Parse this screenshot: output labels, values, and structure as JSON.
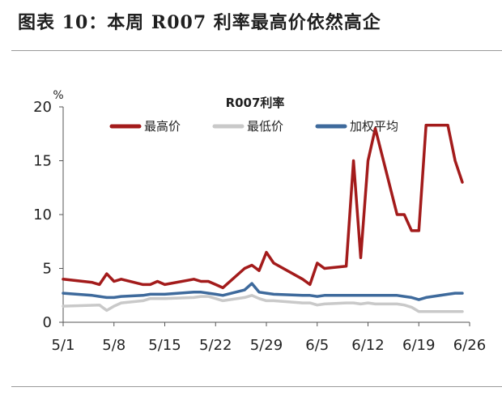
{
  "figure_title": "图表 10：本周 R007 利率最高价依然高企",
  "chart_data": {
    "type": "line",
    "title": "R007利率",
    "y_unit": "%",
    "ylim": [
      0,
      20
    ],
    "y_ticks": [
      0,
      5,
      10,
      15,
      20
    ],
    "x_tick_labels": [
      "5/1",
      "5/8",
      "5/15",
      "5/22",
      "5/29",
      "6/5",
      "6/12",
      "6/19",
      "6/26"
    ],
    "x_range": [
      "5/1",
      "6/26"
    ],
    "legend_placement": "top-center",
    "grid": false,
    "series": [
      {
        "name": "最高价",
        "color": "#a31b1b",
        "points": [
          [
            "5/1",
            4.0
          ],
          [
            "5/5",
            3.7
          ],
          [
            "5/6",
            3.5
          ],
          [
            "5/7",
            4.5
          ],
          [
            "5/8",
            3.8
          ],
          [
            "5/9",
            4.0
          ],
          [
            "5/12",
            3.5
          ],
          [
            "5/13",
            3.5
          ],
          [
            "5/14",
            3.8
          ],
          [
            "5/15",
            3.5
          ],
          [
            "5/19",
            4.0
          ],
          [
            "5/20",
            3.8
          ],
          [
            "5/21",
            3.8
          ],
          [
            "5/22",
            3.5
          ],
          [
            "5/23",
            3.2
          ],
          [
            "5/26",
            5.0
          ],
          [
            "5/27",
            5.3
          ],
          [
            "5/28",
            4.8
          ],
          [
            "5/29",
            6.5
          ],
          [
            "5/30",
            5.5
          ],
          [
            "6/3",
            4.0
          ],
          [
            "6/4",
            3.5
          ],
          [
            "6/5",
            5.5
          ],
          [
            "6/6",
            5.0
          ],
          [
            "6/9",
            5.2
          ],
          [
            "6/10",
            15.0
          ],
          [
            "6/11",
            6.0
          ],
          [
            "6/12",
            15.0
          ],
          [
            "6/13",
            18.0
          ],
          [
            "6/16",
            10.0
          ],
          [
            "6/17",
            10.0
          ],
          [
            "6/18",
            8.5
          ],
          [
            "6/19",
            8.5
          ],
          [
            "6/20",
            18.3
          ],
          [
            "6/23",
            18.3
          ],
          [
            "6/24",
            15.0
          ],
          [
            "6/25",
            13.0
          ]
        ]
      },
      {
        "name": "最低价",
        "color": "#c9c9c9",
        "points": [
          [
            "5/1",
            1.5
          ],
          [
            "5/6",
            1.6
          ],
          [
            "5/7",
            1.1
          ],
          [
            "5/8",
            1.5
          ],
          [
            "5/9",
            1.8
          ],
          [
            "5/12",
            2.0
          ],
          [
            "5/13",
            2.2
          ],
          [
            "5/14",
            2.2
          ],
          [
            "5/15",
            2.2
          ],
          [
            "5/19",
            2.3
          ],
          [
            "5/20",
            2.4
          ],
          [
            "5/21",
            2.4
          ],
          [
            "5/22",
            2.2
          ],
          [
            "5/23",
            2.0
          ],
          [
            "5/26",
            2.3
          ],
          [
            "5/27",
            2.5
          ],
          [
            "5/28",
            2.2
          ],
          [
            "5/29",
            2.0
          ],
          [
            "5/30",
            2.0
          ],
          [
            "6/3",
            1.8
          ],
          [
            "6/4",
            1.8
          ],
          [
            "6/5",
            1.6
          ],
          [
            "6/6",
            1.7
          ],
          [
            "6/9",
            1.8
          ],
          [
            "6/10",
            1.8
          ],
          [
            "6/11",
            1.7
          ],
          [
            "6/12",
            1.8
          ],
          [
            "6/13",
            1.7
          ],
          [
            "6/16",
            1.7
          ],
          [
            "6/17",
            1.6
          ],
          [
            "6/18",
            1.4
          ],
          [
            "6/19",
            1.0
          ],
          [
            "6/20",
            1.0
          ],
          [
            "6/23",
            1.0
          ],
          [
            "6/24",
            1.0
          ],
          [
            "6/25",
            1.0
          ]
        ]
      },
      {
        "name": "加权平均",
        "color": "#3e6a9c",
        "points": [
          [
            "5/1",
            2.7
          ],
          [
            "5/5",
            2.5
          ],
          [
            "5/6",
            2.4
          ],
          [
            "5/7",
            2.3
          ],
          [
            "5/8",
            2.3
          ],
          [
            "5/9",
            2.4
          ],
          [
            "5/12",
            2.5
          ],
          [
            "5/13",
            2.6
          ],
          [
            "5/14",
            2.6
          ],
          [
            "5/15",
            2.6
          ],
          [
            "5/19",
            2.8
          ],
          [
            "5/20",
            2.8
          ],
          [
            "5/21",
            2.7
          ],
          [
            "5/22",
            2.6
          ],
          [
            "5/23",
            2.5
          ],
          [
            "5/26",
            3.0
          ],
          [
            "5/27",
            3.6
          ],
          [
            "5/28",
            2.8
          ],
          [
            "5/29",
            2.7
          ],
          [
            "5/30",
            2.6
          ],
          [
            "6/3",
            2.5
          ],
          [
            "6/4",
            2.5
          ],
          [
            "6/5",
            2.4
          ],
          [
            "6/6",
            2.5
          ],
          [
            "6/9",
            2.5
          ],
          [
            "6/10",
            2.5
          ],
          [
            "6/11",
            2.5
          ],
          [
            "6/12",
            2.5
          ],
          [
            "6/13",
            2.5
          ],
          [
            "6/16",
            2.5
          ],
          [
            "6/17",
            2.4
          ],
          [
            "6/18",
            2.3
          ],
          [
            "6/19",
            2.1
          ],
          [
            "6/20",
            2.3
          ],
          [
            "6/23",
            2.6
          ],
          [
            "6/24",
            2.7
          ],
          [
            "6/25",
            2.7
          ]
        ]
      }
    ]
  }
}
